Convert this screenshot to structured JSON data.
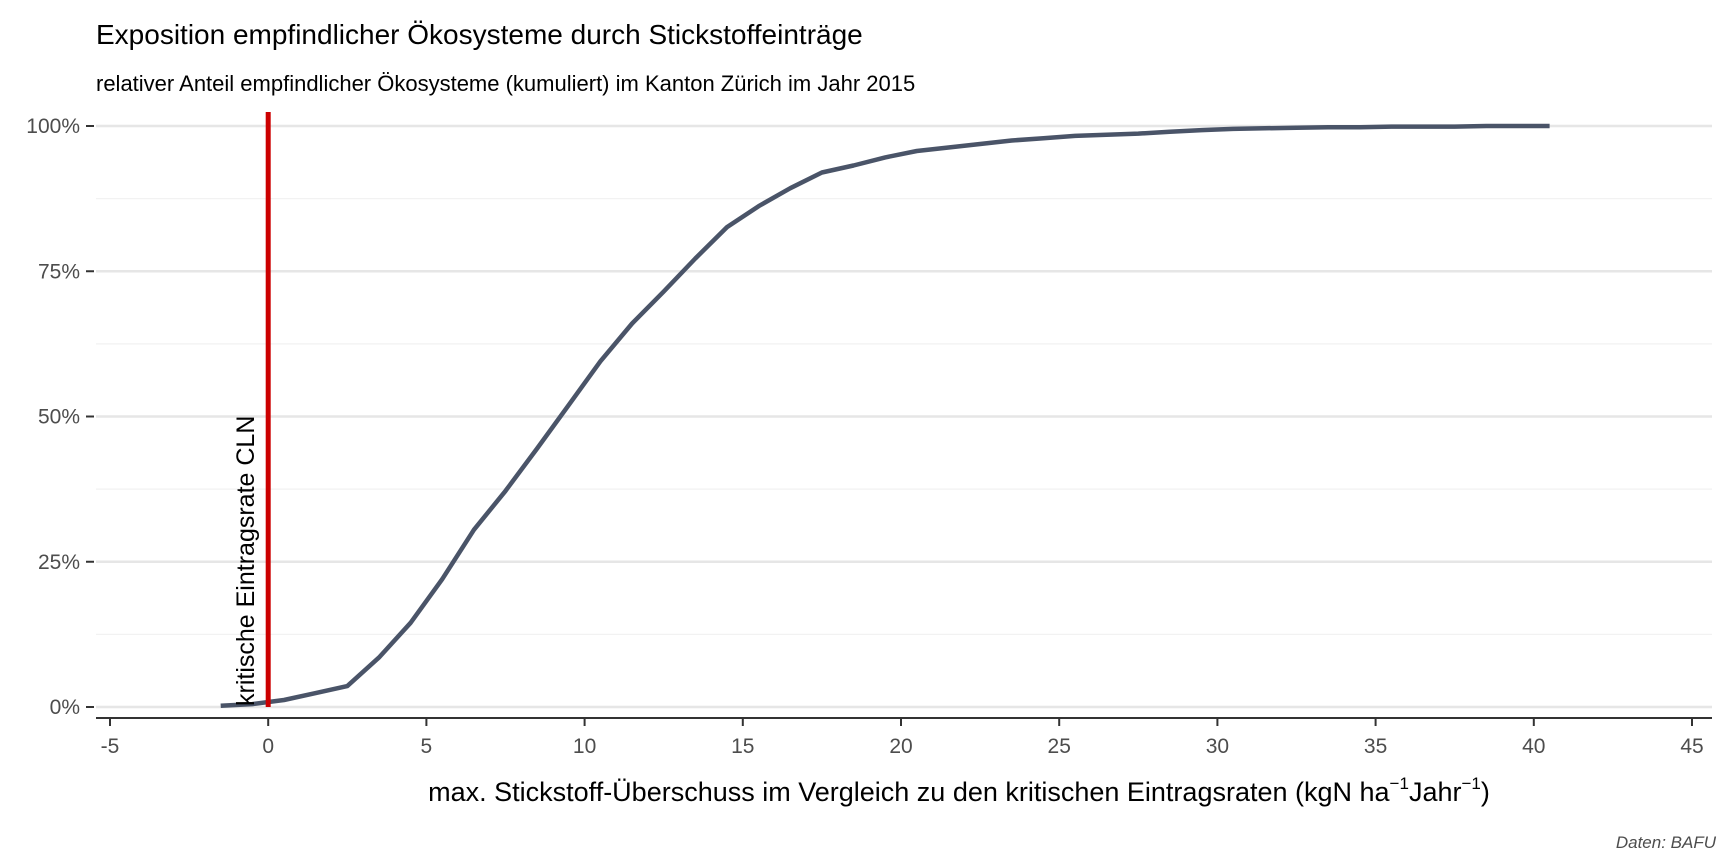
{
  "chart_data": {
    "type": "line",
    "title": "Exposition empfindlicher Ökosysteme durch Stickstoffeinträge",
    "subtitle": "relativer Anteil empfindlicher Ökosysteme (kumuliert) im Kanton Zürich im Jahr 2015",
    "xlabel": {
      "main": "max. Stickstoff-Überschuss im Vergleich zu den kritischen Eintragsraten (kgN ha",
      "sup1": "−1",
      "middle": "Jahr",
      "sup2": "−1",
      "end": ")"
    },
    "ylabel": "",
    "caption": "Daten: BAFU",
    "xlim": [
      -5,
      45
    ],
    "ylim": [
      0,
      1
    ],
    "x_ticks": [
      {
        "value": -5,
        "label": "-5"
      },
      {
        "value": 0,
        "label": "0"
      },
      {
        "value": 5,
        "label": "5"
      },
      {
        "value": 10,
        "label": "10"
      },
      {
        "value": 15,
        "label": "15"
      },
      {
        "value": 20,
        "label": "20"
      },
      {
        "value": 25,
        "label": "25"
      },
      {
        "value": 30,
        "label": "30"
      },
      {
        "value": 35,
        "label": "35"
      },
      {
        "value": 40,
        "label": "40"
      },
      {
        "value": 45,
        "label": "45"
      }
    ],
    "y_ticks": [
      {
        "value": 0,
        "label": "0%"
      },
      {
        "value": 0.25,
        "label": "25%"
      },
      {
        "value": 0.5,
        "label": "50%"
      },
      {
        "value": 0.75,
        "label": "75%"
      },
      {
        "value": 1,
        "label": "100%"
      }
    ],
    "y_minor_ticks": [
      0.125,
      0.375,
      0.625,
      0.875
    ],
    "grid": true,
    "series": [
      {
        "color": "#4a5468",
        "x": [
          -1.5,
          -0.5,
          0.5,
          1.5,
          2.5,
          3.5,
          4.5,
          5.5,
          6.5,
          7.5,
          8.5,
          9.5,
          10.5,
          11.5,
          12.5,
          13.5,
          14.5,
          15.5,
          16.5,
          17.5,
          18.5,
          19.5,
          20.5,
          21.5,
          22.5,
          23.5,
          24.5,
          25.5,
          26.5,
          27.5,
          28.5,
          29.5,
          30.5,
          31.5,
          32.5,
          33.5,
          34.5,
          35.5,
          36.5,
          37.5,
          38.5,
          39.5,
          40.5
        ],
        "y": [
          0.002,
          0.005,
          0.012,
          0.024,
          0.036,
          0.085,
          0.145,
          0.22,
          0.305,
          0.372,
          0.445,
          0.52,
          0.595,
          0.66,
          0.715,
          0.772,
          0.826,
          0.862,
          0.893,
          0.92,
          0.932,
          0.946,
          0.957,
          0.963,
          0.969,
          0.975,
          0.979,
          0.983,
          0.985,
          0.987,
          0.99,
          0.993,
          0.995,
          0.996,
          0.997,
          0.998,
          0.998,
          0.999,
          0.999,
          0.999,
          1.0,
          1.0,
          1.0
        ]
      }
    ],
    "reference_line": {
      "x": 0,
      "color": "#cc0000",
      "label": "kritische Eintragsrate CLN"
    }
  }
}
